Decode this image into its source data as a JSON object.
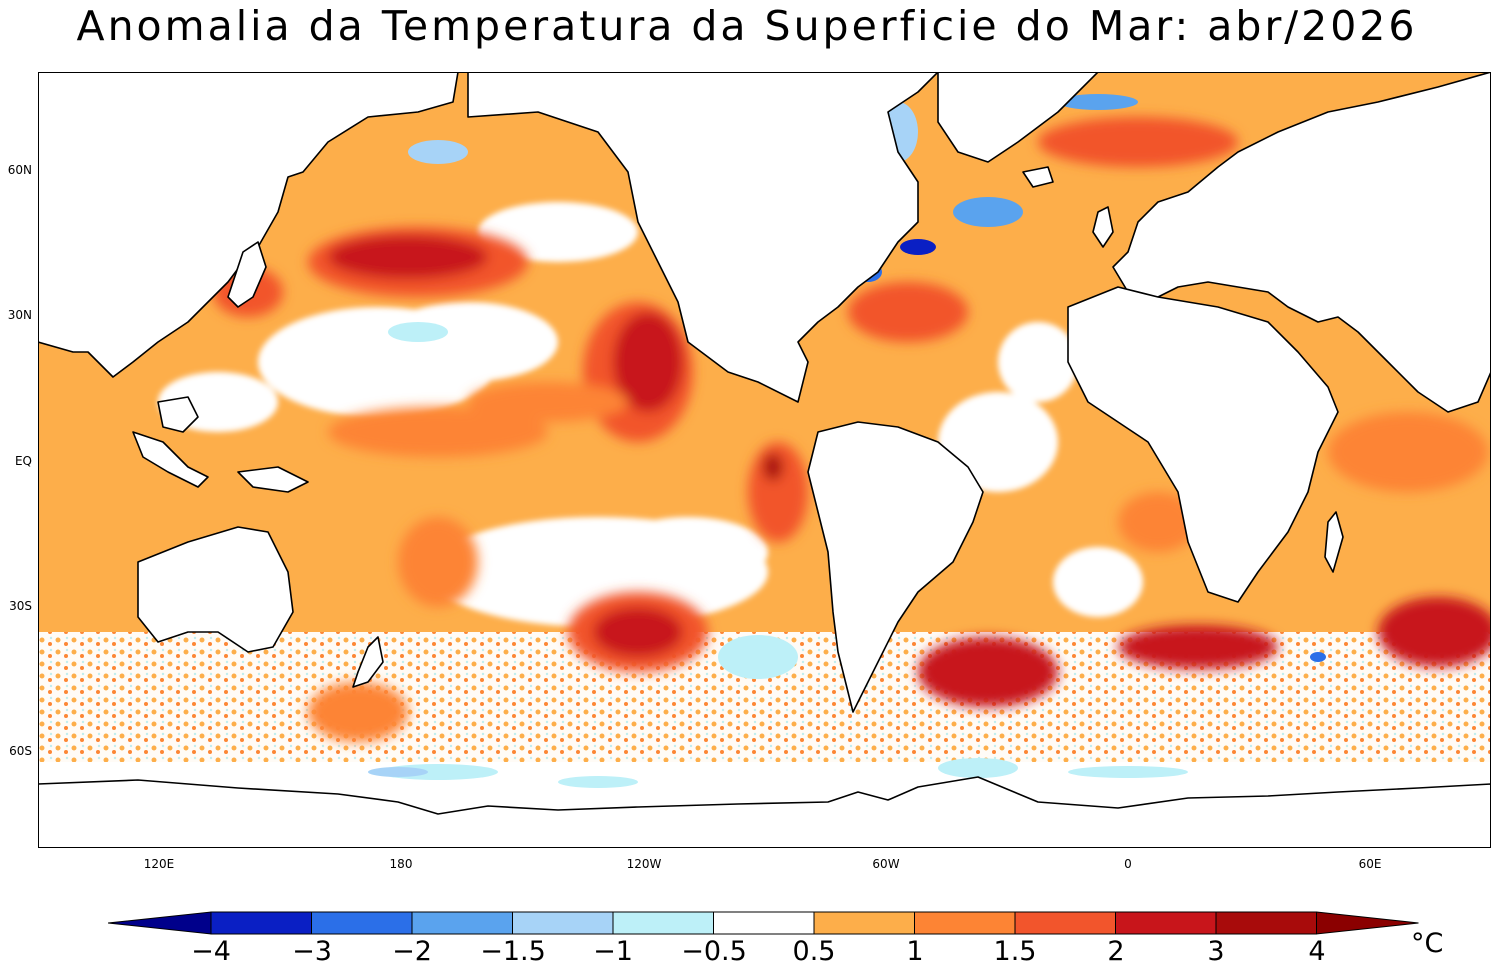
{
  "title": "Anomalia da Temperatura da Superficie do Mar: abr/2026",
  "lat_labels": [
    "60N",
    "30N",
    "EQ",
    "30S",
    "60S"
  ],
  "lon_labels": [
    "120E",
    "180",
    "120W",
    "60W",
    "0",
    "60E"
  ],
  "colorbar": {
    "ticks": [
      "−4",
      "−3",
      "−2",
      "−1.5",
      "−1",
      "−0.5",
      "0.5",
      "1",
      "1.5",
      "2",
      "3",
      "4"
    ],
    "unit": "°C",
    "colors": [
      "#00008b",
      "#0a1fc4",
      "#2b6fe8",
      "#5aa3ee",
      "#a7d3f7",
      "#bdf0f8",
      "#ffffff",
      "#fdae4a",
      "#fd8434",
      "#f2552c",
      "#c8151b",
      "#a80b0b",
      "#8b0000"
    ]
  },
  "map_data": {
    "projection": "equirectangular",
    "lon_range": "40E-90E (Pacific-centered)",
    "lat_range": "80N-78S",
    "variable": "sea surface temperature anomaly",
    "notable_features": [
      {
        "region": "North Pacific (~40N, 165W)",
        "anomaly": "warm",
        "level": ">2"
      },
      {
        "region": "NE Pacific off Baja California",
        "anomaly": "warm",
        "level": ">2"
      },
      {
        "region": "Peru coast (~5S)",
        "anomaly": "warm",
        "level": ">3"
      },
      {
        "region": "South Pacific (~35S, 120W)",
        "anomaly": "warm",
        "level": ">2"
      },
      {
        "region": "South Atlantic / Southern Ocean (~45S)",
        "anomaly": "warm",
        "level": ">2"
      },
      {
        "region": "Gulf Stream / Labrador (~40N, 55W)",
        "anomaly": "mixed",
        "level": "±3"
      },
      {
        "region": "Equatorial Pacific (~10S, 130W)",
        "anomaly": "neutral",
        "level": "-0.5 to 0.5"
      },
      {
        "region": "Antarctic margin (~70S)",
        "anomaly": "cool",
        "level": "-1 to -0.5"
      }
    ]
  }
}
